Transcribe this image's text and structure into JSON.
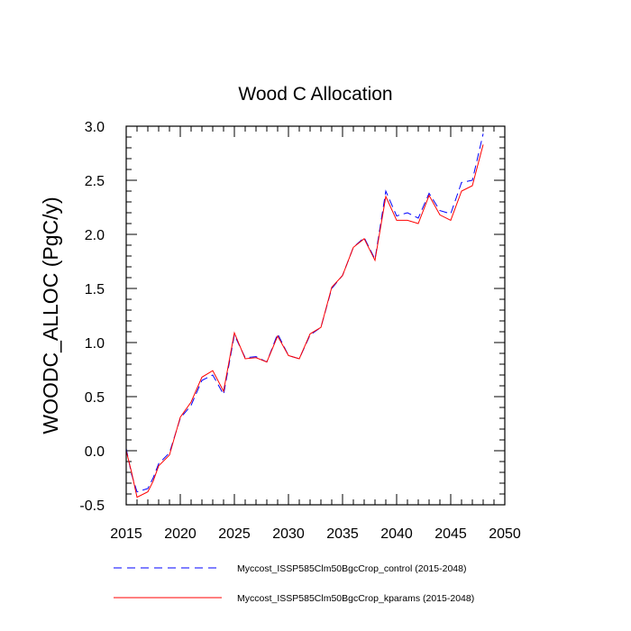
{
  "chart_data": {
    "type": "line",
    "title": "Wood C Allocation",
    "xlabel": "",
    "ylabel": "WOODC_ALLOC  (PgC/y)",
    "xlim": [
      2015,
      2050
    ],
    "ylim": [
      -0.5,
      3.0
    ],
    "xticks": [
      2015,
      2020,
      2025,
      2030,
      2035,
      2040,
      2045,
      2050
    ],
    "xtick_labels": [
      "2015",
      "2020",
      "2025",
      "2030",
      "2035",
      "2040",
      "2045",
      "2050"
    ],
    "yticks": [
      -0.5,
      0.0,
      0.5,
      1.0,
      1.5,
      2.0,
      2.5,
      3.0
    ],
    "ytick_labels": [
      "-0.5",
      "0.0",
      "0.5",
      "1.0",
      "1.5",
      "2.0",
      "2.5",
      "3.0"
    ],
    "legend_position": "bottom",
    "series": [
      {
        "name": "Myccost_ISSP585Clm50BgcCrop_control (2015-2048)",
        "color": "#0000ff",
        "dash": "dashed",
        "x": [
          2015,
          2015.5,
          2016,
          2017,
          2017.5,
          2018,
          2019,
          2020,
          2021,
          2022,
          2023,
          2024,
          2025,
          2026,
          2027,
          2028,
          2029,
          2030,
          2031,
          2032,
          2033,
          2034,
          2035,
          2036,
          2037,
          2038,
          2039,
          2040,
          2041,
          2042,
          2043,
          2044,
          2045,
          2046,
          2047,
          2048
        ],
        "values": [
          0.02,
          -0.22,
          -0.38,
          -0.35,
          -0.25,
          -0.12,
          -0.02,
          0.3,
          0.42,
          0.65,
          0.7,
          0.52,
          1.07,
          0.86,
          0.87,
          0.82,
          1.08,
          0.88,
          0.85,
          1.07,
          1.14,
          1.5,
          1.62,
          1.88,
          1.97,
          1.77,
          2.4,
          2.17,
          2.2,
          2.15,
          2.38,
          2.22,
          2.19,
          2.48,
          2.5,
          2.93
        ]
      },
      {
        "name": "Myccost_ISSP585Clm50BgcCrop_kparams (2015-2048)",
        "color": "#ff0000",
        "dash": "solid",
        "x": [
          2015,
          2015.5,
          2016,
          2017,
          2017.5,
          2018,
          2019,
          2020,
          2021,
          2022,
          2023,
          2024,
          2025,
          2026,
          2027,
          2028,
          2029,
          2030,
          2031,
          2032,
          2033,
          2034,
          2035,
          2036,
          2037,
          2038,
          2039,
          2040,
          2041,
          2042,
          2043,
          2044,
          2045,
          2046,
          2047,
          2048
        ],
        "values": [
          0.0,
          -0.2,
          -0.43,
          -0.38,
          -0.28,
          -0.14,
          -0.04,
          0.31,
          0.45,
          0.68,
          0.74,
          0.55,
          1.09,
          0.85,
          0.86,
          0.82,
          1.06,
          0.88,
          0.85,
          1.08,
          1.14,
          1.51,
          1.62,
          1.88,
          1.96,
          1.76,
          2.35,
          2.13,
          2.13,
          2.1,
          2.36,
          2.18,
          2.13,
          2.4,
          2.45,
          2.83
        ]
      }
    ]
  }
}
